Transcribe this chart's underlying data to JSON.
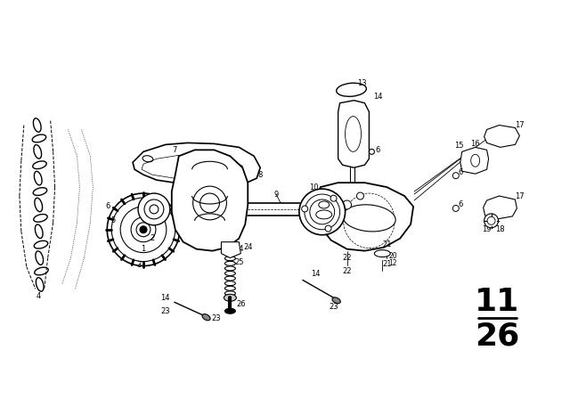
{
  "background_color": "#ffffff",
  "figure_width": 6.4,
  "figure_height": 4.48,
  "dpi": 100,
  "section_top": "11",
  "section_bottom": "26",
  "lw_thin": 0.6,
  "lw_med": 1.0,
  "lw_thick": 1.5,
  "lw_heavy": 2.0,
  "black": "#000000",
  "font_label": 6.0,
  "font_section": 26
}
